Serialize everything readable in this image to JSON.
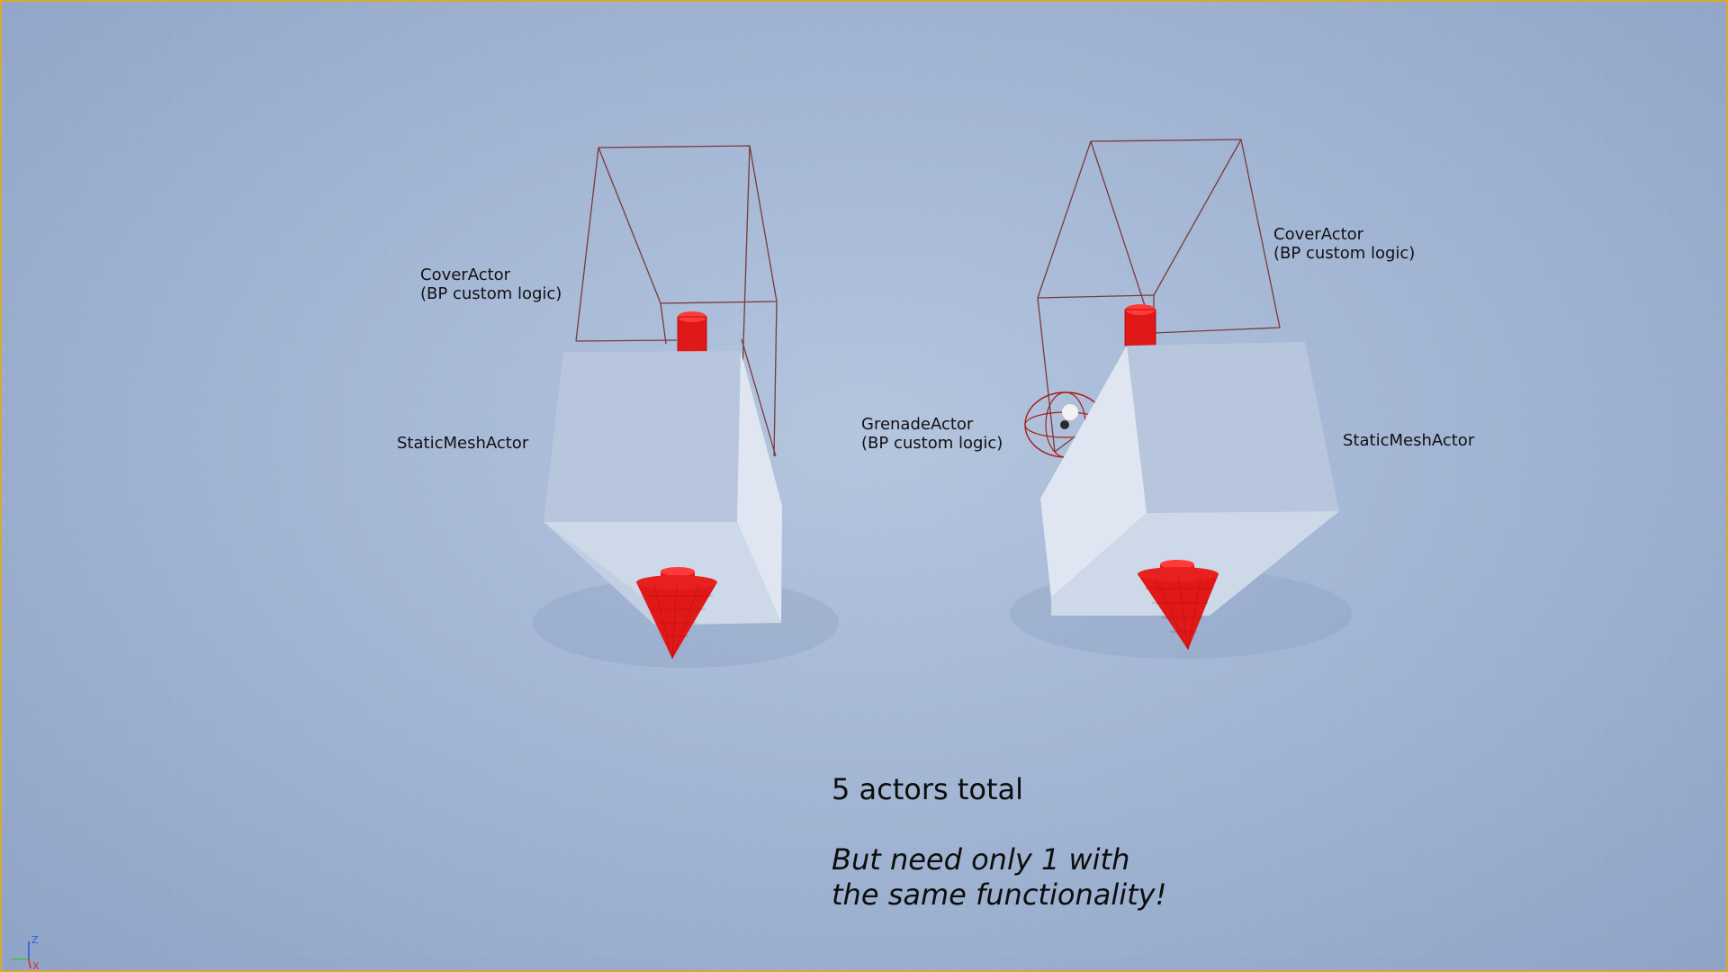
{
  "viewport": {
    "colors": {
      "border": "#d9a732",
      "background": "#a3b6d4",
      "trigger_box": "#7a3a3a",
      "mesh_face_light": "#c9d5e6",
      "mesh_face_mid": "#b2c1d9",
      "mesh_face_dark": "#dde5f0",
      "arrow_red": "#e01818"
    }
  },
  "labels": {
    "cover_left": {
      "line1": "CoverActor",
      "line2": "(BP custom logic)"
    },
    "cover_right": {
      "line1": "CoverActor",
      "line2": "(BP custom logic)"
    },
    "mesh_left": "StaticMeshActor",
    "mesh_right": "StaticMeshActor",
    "grenade": {
      "line1": "GrenadeActor",
      "line2": "(BP custom logic)"
    }
  },
  "notes": {
    "count": "5 actors total",
    "message_line1": "But need only 1 with",
    "message_line2": "the same functionality!"
  },
  "axis_gizmo": {
    "z_label": "Z",
    "x_label": "X",
    "colors": {
      "z": "#2f5de0",
      "x": "#e02b2b",
      "y": "#3cc43c"
    }
  }
}
